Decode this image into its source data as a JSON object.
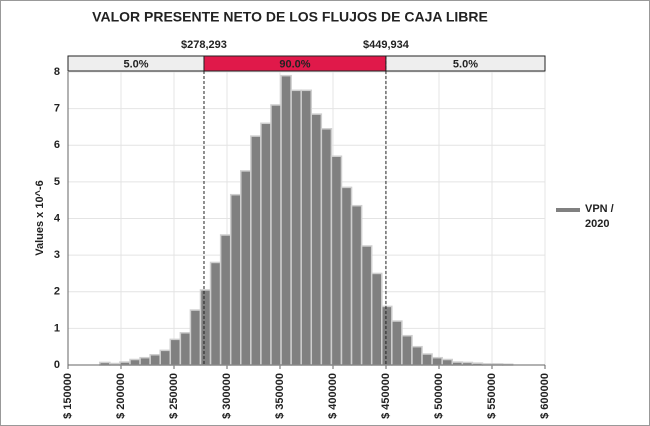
{
  "chart_data": {
    "type": "histogram",
    "title": "VALOR PRESENTE NETO DE LOS FLUJOS DE CAJA LIBRE",
    "y_label": "Values x 10^-6",
    "bins": [
      180000,
      189500,
      199000,
      208500,
      218000,
      227500,
      237000,
      246500,
      256000,
      265500,
      275000,
      284500,
      294000,
      303500,
      313000,
      322500,
      332000,
      341500,
      351000,
      360500,
      370000,
      379500,
      389000,
      398500,
      408000,
      417500,
      427000,
      436500,
      446000,
      455500,
      465000,
      474500,
      484000,
      493500,
      503000,
      512500,
      522000,
      531500,
      541000,
      550500,
      560000,
      569500
    ],
    "series": [
      {
        "name": "VPN / 2020",
        "color": "#808080",
        "values": [
          0.07,
          0.04,
          0.08,
          0.15,
          0.2,
          0.28,
          0.4,
          0.7,
          0.88,
          1.5,
          2.05,
          2.8,
          3.55,
          4.65,
          5.3,
          6.25,
          6.6,
          7.1,
          7.9,
          7.5,
          7.5,
          6.85,
          6.45,
          5.7,
          4.85,
          4.35,
          3.25,
          2.5,
          1.6,
          1.2,
          0.8,
          0.5,
          0.3,
          0.2,
          0.15,
          0.08,
          0.07,
          0.05,
          0.03,
          0.03,
          0.02
        ]
      }
    ],
    "xlim": [
      150000,
      600000
    ],
    "xticks": [
      {
        "value": 150000,
        "label": "$ 150000"
      },
      {
        "value": 200000,
        "label": "$ 200000"
      },
      {
        "value": 250000,
        "label": "$ 250000"
      },
      {
        "value": 300000,
        "label": "$ 300000"
      },
      {
        "value": 350000,
        "label": "$ 350000"
      },
      {
        "value": 400000,
        "label": "$ 400000"
      },
      {
        "value": 450000,
        "label": "$ 450000"
      },
      {
        "value": 500000,
        "label": "$ 500000"
      },
      {
        "value": 550000,
        "label": "$ 550000"
      },
      {
        "value": 600000,
        "label": "$ 600000"
      }
    ],
    "ylim": [
      0,
      8
    ],
    "yticks": [
      0,
      1,
      2,
      3,
      4,
      5,
      6,
      7,
      8
    ],
    "grid": true,
    "delimiters": [
      {
        "value": 278293,
        "label": "$278,293"
      },
      {
        "value": 449934,
        "label": "$449,934"
      }
    ],
    "percentiles": [
      {
        "value": 5.0,
        "label": "5.0%"
      },
      {
        "value": 90.0,
        "label": "90.0%"
      },
      {
        "value": 5.0,
        "label": "5.0%"
      }
    ],
    "legend_position": "right"
  }
}
